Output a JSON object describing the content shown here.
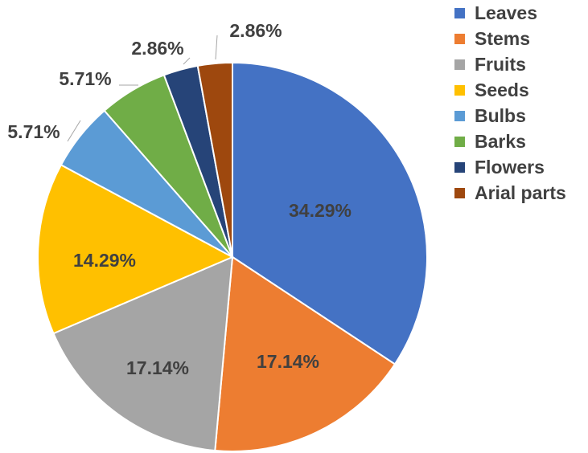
{
  "chart_data": {
    "type": "pie",
    "title": "",
    "categories": [
      "Leaves",
      "Stems",
      "Fruits",
      "Seeds",
      "Bulbs",
      "Barks",
      "Flowers",
      "Arial parts"
    ],
    "values": [
      34.29,
      17.14,
      17.14,
      14.29,
      5.71,
      5.71,
      2.86,
      2.86
    ],
    "data_labels": [
      "34.29%",
      "17.14%",
      "17.14%",
      "14.29%",
      "5.71%",
      "5.71%",
      "2.86%",
      "2.86%"
    ],
    "colors": [
      "#4472C4",
      "#ED7D31",
      "#A5A5A5",
      "#FFC000",
      "#5B9BD5",
      "#70AD47",
      "#264478",
      "#9E480E"
    ],
    "start_angle_deg": 0,
    "direction": "clockwise",
    "legend_position": "right"
  }
}
